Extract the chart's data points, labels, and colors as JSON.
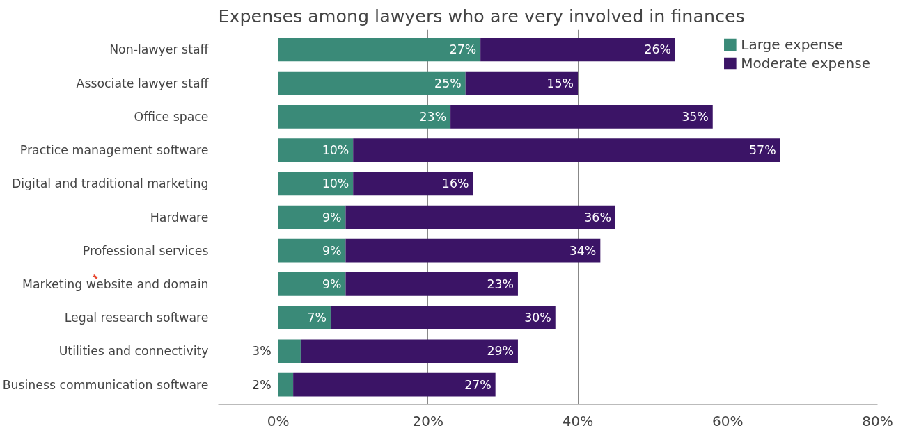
{
  "chart_data": {
    "type": "bar",
    "orientation": "horizontal",
    "stacked": true,
    "title": "Expenses among lawyers who are very involved in finances",
    "categories": [
      "Non-lawyer staff",
      "Associate lawyer staff",
      "Office space",
      "Practice management software",
      "Digital and traditional marketing",
      "Hardware",
      "Professional services",
      "Marketing website and domain",
      "Legal research software",
      "Utilities and connectivity",
      "Business communication software"
    ],
    "series": [
      {
        "name": "Large expense",
        "color": "#3a8a78",
        "values": [
          27,
          25,
          23,
          10,
          10,
          9,
          9,
          9,
          7,
          3,
          2
        ],
        "value_labels": [
          "27%",
          "25%",
          "23%",
          "10%",
          "10%",
          "9%",
          "9%",
          "9%",
          "7%",
          "3%",
          "2%"
        ]
      },
      {
        "name": "Moderate expense",
        "color": "#3b1466",
        "values": [
          26,
          15,
          35,
          57,
          16,
          36,
          34,
          23,
          30,
          29,
          27
        ],
        "value_labels": [
          "26%",
          "15%",
          "35%",
          "57%",
          "16%",
          "36%",
          "34%",
          "23%",
          "30%",
          "29%",
          "27%"
        ]
      }
    ],
    "xlim": [
      -8,
      80
    ],
    "xticks": [
      {
        "value": 0,
        "label": "0%"
      },
      {
        "value": 20,
        "label": "20%"
      },
      {
        "value": 40,
        "label": "40%"
      },
      {
        "value": 60,
        "label": "60%"
      },
      {
        "value": 80,
        "label": "80%"
      }
    ],
    "grid": "x",
    "legend": "top right",
    "data_labels": true
  }
}
